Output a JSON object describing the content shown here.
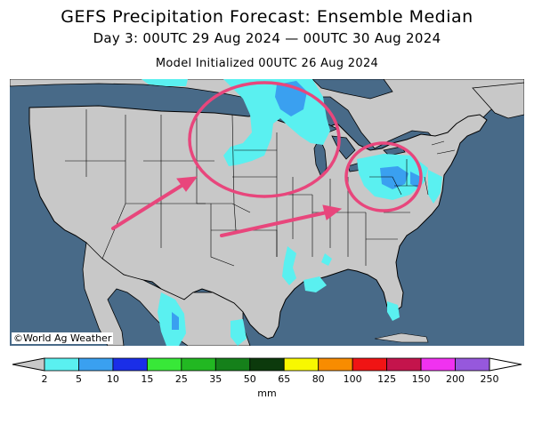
{
  "title": "GEFS Precipitation Forecast: Ensemble Median",
  "subtitle": "Day 3: 00UTC 29 Aug 2024 — 00UTC 30 Aug 2024",
  "initialized": "Model Initialized 00UTC 26 Aug 2024",
  "copyright": "©World Ag Weather",
  "colorbar": {
    "unit": "mm",
    "ticks": [
      "2",
      "5",
      "10",
      "15",
      "25",
      "35",
      "50",
      "65",
      "80",
      "100",
      "125",
      "150",
      "200",
      "250"
    ],
    "colors": [
      "#5af0f0",
      "#3aa0f0",
      "#1a2ee8",
      "#38e838",
      "#22b822",
      "#15801a",
      "#0c3a0c",
      "#f8f800",
      "#f88c00",
      "#f01414",
      "#c4144c",
      "#f032f0",
      "#9658dc"
    ],
    "under_color": "#c8c8c8",
    "over_color": "#ffffff"
  },
  "colors": {
    "land": "#c8c8c8",
    "water": "#486a88",
    "annotation": "#e8467c"
  }
}
